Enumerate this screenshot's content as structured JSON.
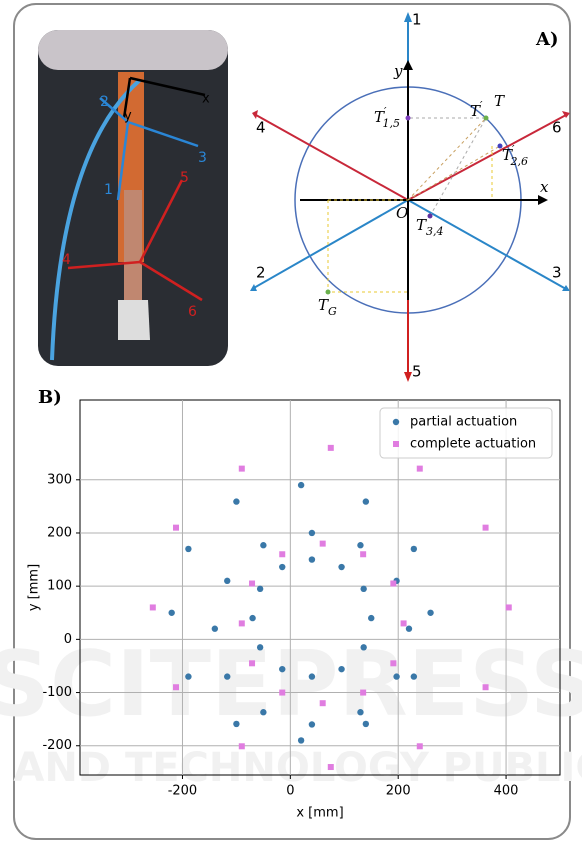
{
  "panel_a": {
    "label": "A)",
    "photo_labels": {
      "x": "x",
      "y": "y",
      "a1": "1",
      "a2": "2",
      "a3": "3",
      "a4": "4",
      "a5": "5",
      "a6": "6"
    },
    "axes": {
      "x": "x",
      "y": "y",
      "origin": "O"
    },
    "rays": {
      "r1": "1",
      "r2": "2",
      "r3": "3",
      "r4": "4",
      "r5": "5",
      "r6": "6"
    },
    "points": {
      "t": {
        "base": "T"
      },
      "t_prime": {
        "base": "T",
        "sup": "′"
      },
      "t15": {
        "base": "T",
        "sup": "′",
        "sub": "1,5"
      },
      "t26": {
        "base": "T",
        "sup": "′",
        "sub": "2,6"
      },
      "t34": {
        "base": "T",
        "sub": "3,4"
      },
      "tg": {
        "base": "T",
        "sub": "G"
      }
    }
  },
  "watermark": {
    "line1": "SCITEPRESS",
    "line2": "SCIENCE AND TECHNOLOGY PUBLICATIONS"
  },
  "chart_data": {
    "type": "scatter",
    "panel_label": "B)",
    "xlabel": "x [mm]",
    "ylabel": "y [mm]",
    "xlim": [
      -390,
      500
    ],
    "ylim": [
      -255,
      450
    ],
    "xticks": [
      -200,
      0,
      200,
      400
    ],
    "yticks": [
      -200,
      -100,
      0,
      100,
      200,
      300
    ],
    "grid": true,
    "legend": "upper right",
    "series": [
      {
        "name": "partial actuation",
        "color": "#3a78a8",
        "marker": "circle",
        "x": [
          150,
          136,
          95,
          40,
          -15,
          -56,
          -70,
          -56,
          -15,
          40,
          95,
          136,
          220,
          197,
          130,
          40,
          -50,
          -117,
          -140,
          -117,
          -50,
          40,
          130,
          197,
          260,
          229,
          140,
          20,
          -100,
          -189,
          -220,
          -189,
          -100,
          20,
          140,
          229
        ],
        "values": [
          40,
          95,
          136,
          150,
          136,
          95,
          40,
          -15,
          -56,
          -70,
          -56,
          -15,
          20,
          110,
          177,
          200,
          177,
          110,
          20,
          -70,
          -137,
          -160,
          -137,
          -70,
          50,
          170,
          259,
          290,
          259,
          170,
          50,
          -70,
          -159,
          -190,
          -159,
          -70
        ]
      },
      {
        "name": "complete actuation",
        "color": "#e07de0",
        "marker": "square",
        "x": [
          405,
          362,
          240,
          75,
          -90,
          -212,
          -255,
          -212,
          -90,
          75,
          240,
          362,
          210,
          191,
          135,
          60,
          -15,
          -71,
          -90,
          -71,
          -15,
          60,
          135,
          191
        ],
        "values": [
          60,
          210,
          321,
          360,
          321,
          210,
          60,
          -90,
          -201,
          -240,
          -201,
          -90,
          30,
          105,
          160,
          180,
          160,
          105,
          30,
          -45,
          -100,
          -120,
          -100,
          -45
        ]
      }
    ]
  }
}
